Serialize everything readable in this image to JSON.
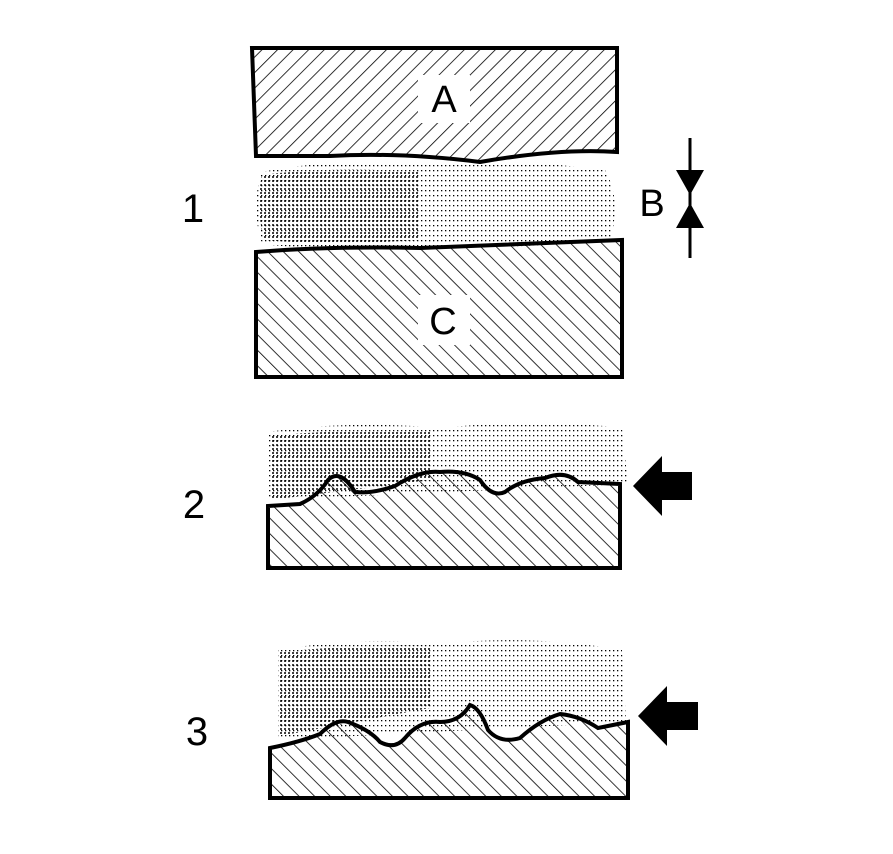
{
  "diagram": {
    "step_labels": [
      "1",
      "2",
      "3"
    ],
    "part_labels": {
      "upper_block": "A",
      "gap": "B",
      "lower_block": "C"
    },
    "colors": {
      "ink": "#000000",
      "paper": "#ffffff",
      "lubricant_dots": "#000000"
    },
    "icons": {
      "gap_indicator": "dimension-arrows-icon",
      "load_arrow": "arrow-left-icon"
    }
  }
}
